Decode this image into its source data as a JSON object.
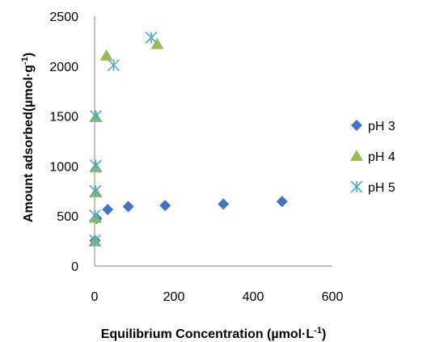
{
  "chart_data": {
    "type": "scatter",
    "xlabel_main": "Equilibrium Concentration (µmol·L",
    "xlabel_sup": "-1",
    "xlabel_end": ")",
    "ylabel_main": "Amount adsorbed(µmol·g",
    "ylabel_sup": "-1",
    "ylabel_end": ")",
    "xlim": [
      0,
      600
    ],
    "ylim": [
      0,
      2500
    ],
    "xticks": [
      0,
      200,
      400,
      600
    ],
    "yticks": [
      0,
      500,
      1000,
      1500,
      2000,
      2500
    ],
    "grid": false,
    "legend_position": "right",
    "series": [
      {
        "name": "pH 3",
        "marker": "diamond",
        "color": "#4472C4",
        "points": [
          [
            1,
            255
          ],
          [
            5,
            475
          ],
          [
            33,
            565
          ],
          [
            85,
            595
          ],
          [
            178,
            605
          ],
          [
            325,
            620
          ],
          [
            473,
            645
          ]
        ]
      },
      {
        "name": "pH 4",
        "marker": "triangle",
        "color": "#9BBB59",
        "points": [
          [
            1,
            245
          ],
          [
            2,
            480
          ],
          [
            3,
            735
          ],
          [
            3,
            985
          ],
          [
            3,
            1490
          ],
          [
            30,
            2105
          ],
          [
            158,
            2220
          ]
        ]
      },
      {
        "name": "pH 5",
        "marker": "asterisk",
        "color": "#4BACC6",
        "points": [
          [
            1,
            255
          ],
          [
            1,
            505
          ],
          [
            2,
            750
          ],
          [
            3,
            1005
          ],
          [
            3,
            1500
          ],
          [
            48,
            2010
          ],
          [
            143,
            2285
          ]
        ]
      }
    ]
  }
}
